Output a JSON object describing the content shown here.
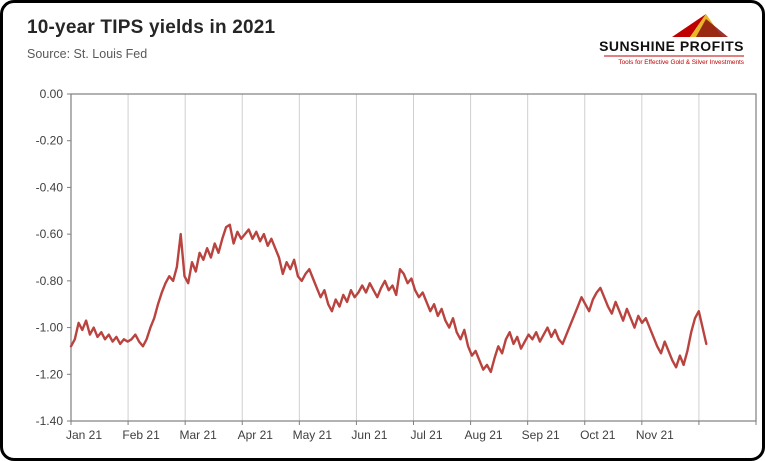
{
  "header": {
    "title": "10-year TIPS yields in 2021",
    "source": "Source: St. Louis Fed"
  },
  "logo": {
    "name": "SUNSHINE PROFITS",
    "tagline": "Tools for Effective Gold & Silver Investments",
    "accent_red": "#c00000",
    "accent_yellow": "#e8b82a"
  },
  "chart_data": {
    "type": "line",
    "title": "10-year TIPS yields in 2021",
    "xlabel": "",
    "ylabel": "",
    "x_labels": [
      "Jan 21",
      "Feb 21",
      "Mar 21",
      "Apr 21",
      "May 21",
      "Jun 21",
      "Jul 21",
      "Aug 21",
      "Sep 21",
      "Oct 21",
      "Nov 21"
    ],
    "x_months_total": 12,
    "x_end_month": 11.13,
    "y_ticks": [
      "0.00",
      "-0.20",
      "-0.40",
      "-0.60",
      "-0.80",
      "-1.00",
      "-1.20",
      "-1.40"
    ],
    "ylim": [
      -1.4,
      0.0
    ],
    "grid": "vertical-only",
    "legend": "none",
    "line_color": "#b9433f",
    "series_name": "10-year TIPS yield (%)",
    "values": [
      -1.08,
      -1.05,
      -0.98,
      -1.01,
      -0.97,
      -1.03,
      -1.0,
      -1.04,
      -1.02,
      -1.05,
      -1.03,
      -1.06,
      -1.04,
      -1.07,
      -1.05,
      -1.06,
      -1.05,
      -1.03,
      -1.06,
      -1.08,
      -1.05,
      -1.0,
      -0.96,
      -0.9,
      -0.85,
      -0.81,
      -0.78,
      -0.8,
      -0.74,
      -0.6,
      -0.78,
      -0.81,
      -0.72,
      -0.76,
      -0.68,
      -0.71,
      -0.66,
      -0.7,
      -0.64,
      -0.68,
      -0.62,
      -0.57,
      -0.56,
      -0.64,
      -0.59,
      -0.62,
      -0.6,
      -0.58,
      -0.62,
      -0.59,
      -0.63,
      -0.6,
      -0.65,
      -0.62,
      -0.66,
      -0.7,
      -0.77,
      -0.72,
      -0.75,
      -0.71,
      -0.78,
      -0.8,
      -0.77,
      -0.75,
      -0.79,
      -0.83,
      -0.87,
      -0.84,
      -0.9,
      -0.93,
      -0.88,
      -0.91,
      -0.86,
      -0.89,
      -0.84,
      -0.87,
      -0.85,
      -0.82,
      -0.85,
      -0.81,
      -0.84,
      -0.87,
      -0.83,
      -0.8,
      -0.84,
      -0.82,
      -0.86,
      -0.75,
      -0.77,
      -0.81,
      -0.79,
      -0.84,
      -0.87,
      -0.85,
      -0.89,
      -0.93,
      -0.9,
      -0.95,
      -0.92,
      -0.97,
      -1.0,
      -0.96,
      -1.02,
      -1.05,
      -1.01,
      -1.08,
      -1.12,
      -1.1,
      -1.14,
      -1.18,
      -1.16,
      -1.19,
      -1.13,
      -1.08,
      -1.11,
      -1.05,
      -1.02,
      -1.07,
      -1.04,
      -1.09,
      -1.06,
      -1.03,
      -1.05,
      -1.02,
      -1.06,
      -1.03,
      -1.0,
      -1.04,
      -1.01,
      -1.05,
      -1.07,
      -1.03,
      -0.99,
      -0.95,
      -0.91,
      -0.87,
      -0.9,
      -0.93,
      -0.88,
      -0.85,
      -0.83,
      -0.87,
      -0.91,
      -0.94,
      -0.89,
      -0.93,
      -0.97,
      -0.92,
      -0.96,
      -1.0,
      -0.95,
      -0.98,
      -0.96,
      -1.0,
      -1.04,
      -1.08,
      -1.11,
      -1.06,
      -1.1,
      -1.14,
      -1.17,
      -1.12,
      -1.16,
      -1.1,
      -1.02,
      -0.96,
      -0.93,
      -1.0,
      -1.07
    ]
  }
}
